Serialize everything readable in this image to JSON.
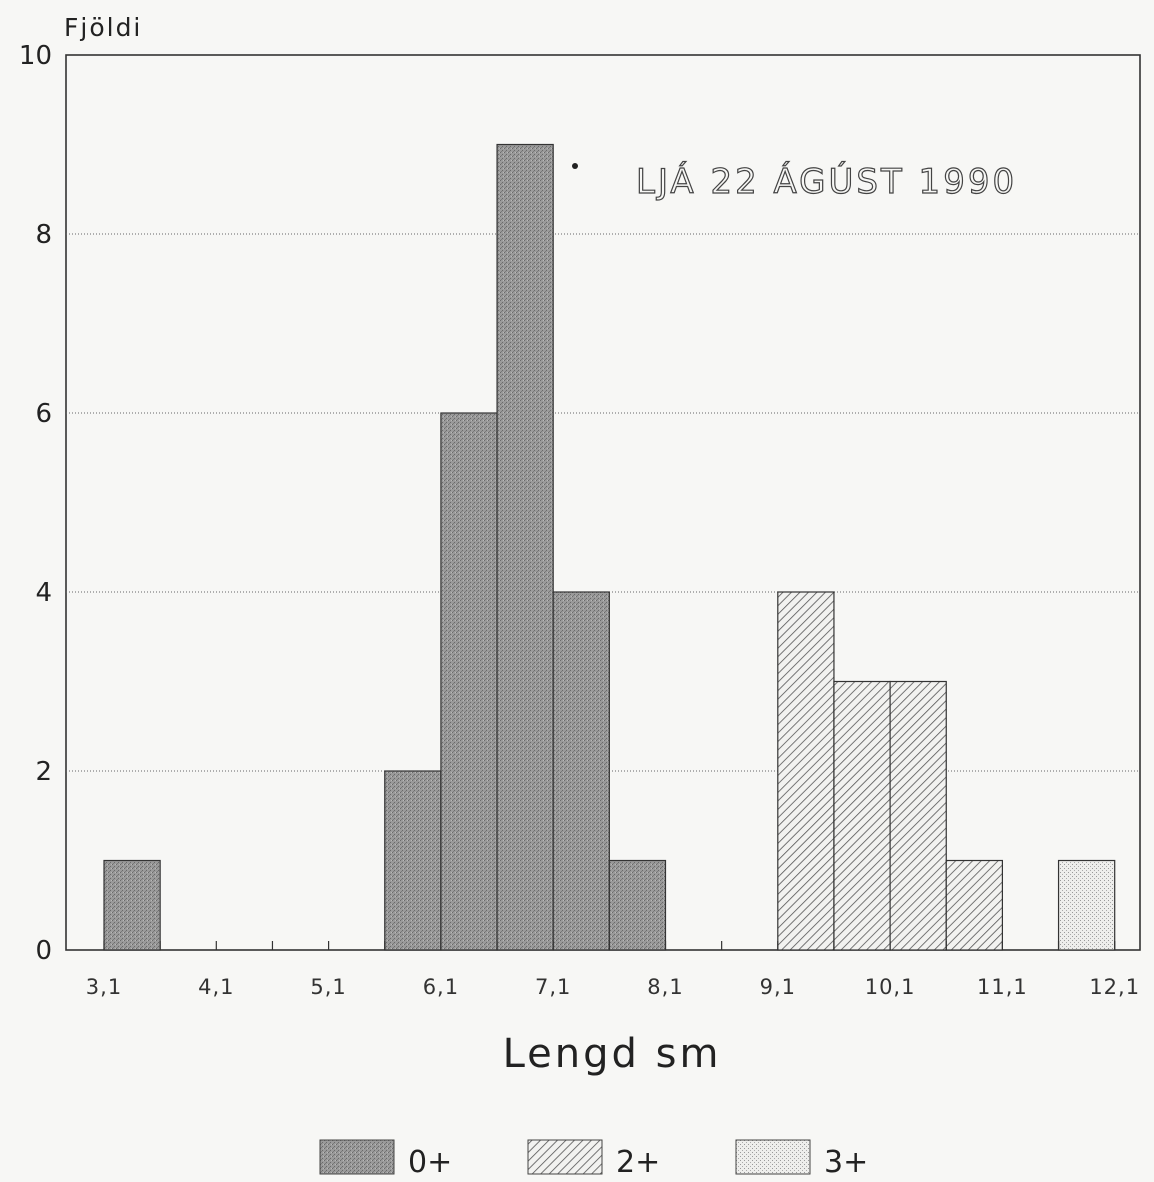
{
  "chart_data": {
    "type": "bar",
    "title": "LJÁ 22 ÁGÚST 1990",
    "ylabel": "Fjöldi",
    "xlabel": "Lengd sm",
    "ylim": [
      0,
      10
    ],
    "yticks": [
      "0",
      "2",
      "4",
      "6",
      "8",
      "10"
    ],
    "xticks": [
      "3,1",
      "4,1",
      "5,1",
      "6,1",
      "7,1",
      "8,1",
      "9,1",
      "10,1",
      "11,1",
      "12,1"
    ],
    "bin_width": 0.5,
    "grid": "horizontal dotted",
    "legend_placement": "bottom",
    "series": [
      {
        "name": "0+",
        "color": "#8a8a8a",
        "pattern": "dark-stipple",
        "bars": [
          {
            "x": 3.35,
            "y": 1
          },
          {
            "x": 5.85,
            "y": 2
          },
          {
            "x": 6.35,
            "y": 6
          },
          {
            "x": 6.85,
            "y": 9
          },
          {
            "x": 7.35,
            "y": 4
          },
          {
            "x": 7.85,
            "y": 1
          }
        ]
      },
      {
        "name": "2+",
        "color": "#555555",
        "pattern": "diagonal-hatch",
        "bars": [
          {
            "x": 9.35,
            "y": 4
          },
          {
            "x": 9.85,
            "y": 3
          },
          {
            "x": 10.35,
            "y": 3
          },
          {
            "x": 10.85,
            "y": 1
          }
        ]
      },
      {
        "name": "3+",
        "color": "#bbbbbb",
        "pattern": "light-dots",
        "bars": [
          {
            "x": 11.85,
            "y": 1
          }
        ]
      }
    ]
  }
}
